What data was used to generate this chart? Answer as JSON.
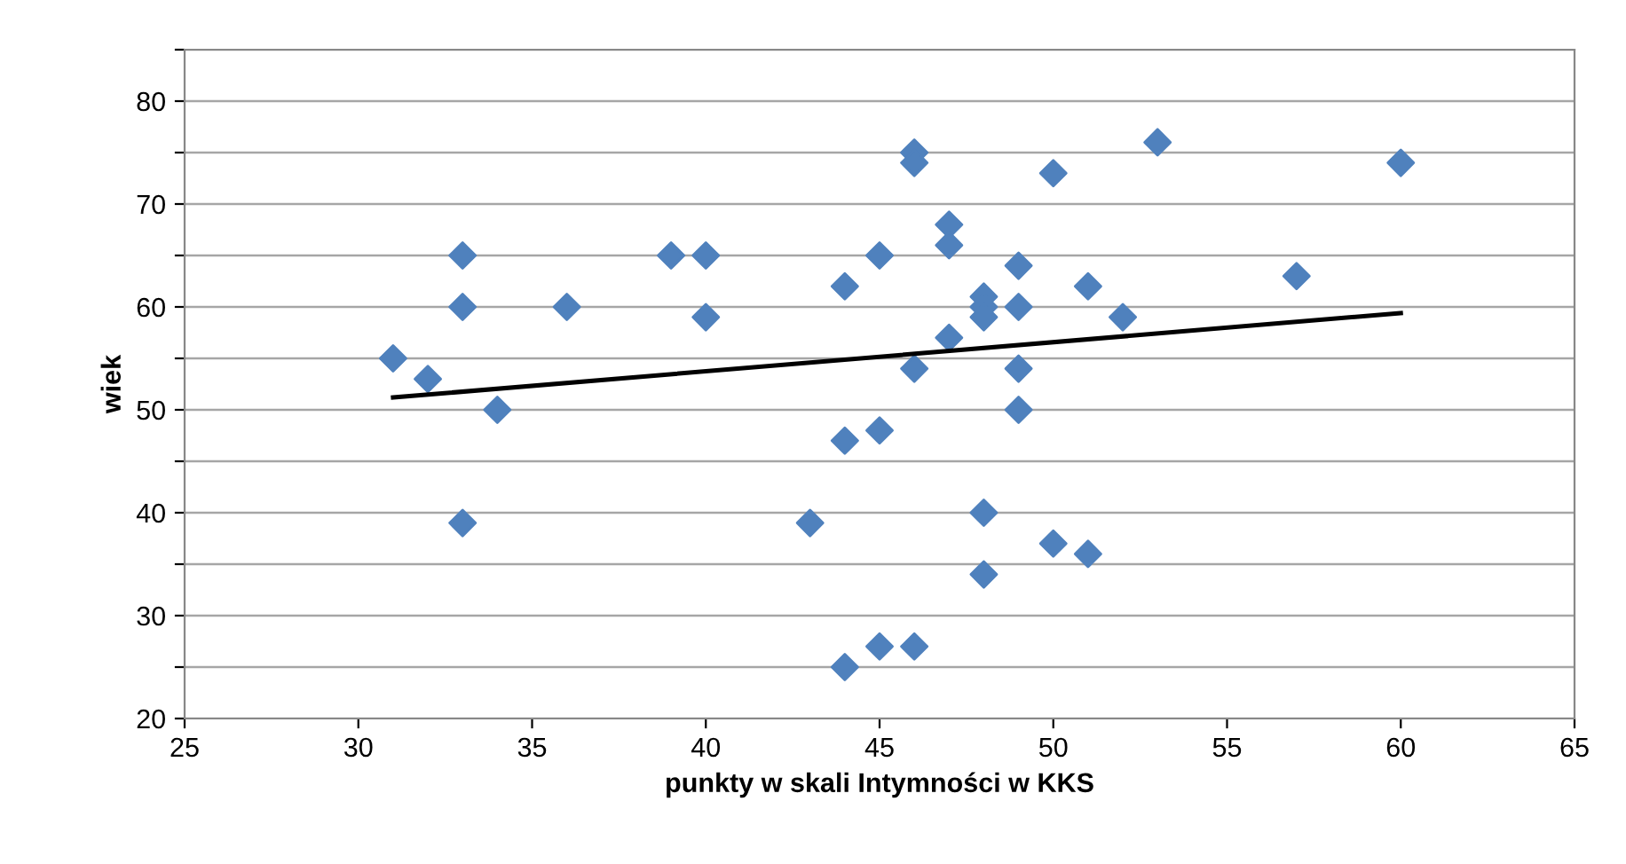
{
  "chart_data": {
    "type": "scatter",
    "xlabel": "punkty w skali Intymności w KKS",
    "ylabel": "wiek",
    "xlim": [
      25,
      65
    ],
    "xticks": [
      25,
      30,
      35,
      40,
      45,
      50,
      55,
      60,
      65
    ],
    "ylim": [
      20,
      85
    ],
    "yticks": [
      20,
      {
        "value": 25,
        "label": null
      },
      30,
      {
        "value": 35,
        "label": null
      },
      40,
      {
        "value": 45,
        "label": null
      },
      50,
      {
        "value": 55,
        "label": null
      },
      60,
      {
        "value": 65,
        "label": null
      },
      70,
      {
        "value": 75,
        "label": null
      },
      80,
      {
        "value": 85,
        "label": null
      }
    ],
    "grid": "y",
    "legend": false,
    "series": [
      {
        "color": "#4f81bd",
        "marker": "diamond",
        "x": [
          31,
          32,
          33,
          33,
          33,
          34,
          36,
          39,
          40,
          40,
          43,
          44,
          44,
          44,
          45,
          45,
          45,
          46,
          46,
          46,
          46,
          47,
          47,
          47,
          48,
          48,
          48,
          48,
          48,
          49,
          49,
          49,
          49,
          50,
          50,
          51,
          51,
          52,
          53,
          57,
          60
        ],
        "values": [
          55,
          53,
          65,
          60,
          39,
          50,
          60,
          65,
          65,
          59,
          39,
          62,
          47,
          25,
          65,
          48,
          27,
          75,
          74,
          54,
          27,
          68,
          66,
          57,
          61,
          60,
          59,
          40,
          34,
          64,
          60,
          54,
          50,
          73,
          37,
          62,
          36,
          59,
          76,
          63,
          74
        ]
      },
      {
        "type": "line",
        "color": "#000000",
        "marker": "none",
        "line_style": "solid",
        "x": [
          31,
          60
        ],
        "values": [
          51.2,
          59.4
        ]
      }
    ]
  }
}
